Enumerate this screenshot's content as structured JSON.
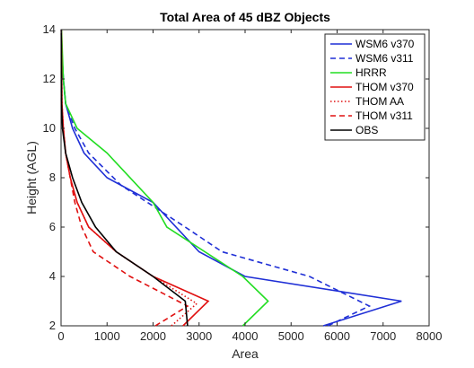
{
  "chart_data": {
    "type": "line",
    "title": "Total Area of 45 dBZ Objects",
    "xlabel": "Area",
    "ylabel": "Height (AGL)",
    "xlim": [
      0,
      8000
    ],
    "ylim": [
      2,
      14
    ],
    "xticks": [
      0,
      1000,
      2000,
      3000,
      4000,
      5000,
      6000,
      7000,
      8000
    ],
    "yticks": [
      2,
      4,
      6,
      8,
      10,
      12,
      14
    ],
    "grid": false,
    "legend_position": "top-right",
    "series": [
      {
        "name": "WSM6 v370",
        "color": "#1f2fd6",
        "dash": "solid",
        "x": [
          5700,
          7400,
          4000,
          3000,
          2000,
          1000,
          500,
          250,
          100,
          50,
          20,
          10,
          5
        ],
        "y": [
          2,
          3,
          4,
          5,
          7,
          8,
          9,
          10,
          11,
          12,
          13,
          13.5,
          14
        ]
      },
      {
        "name": "WSM6 v311",
        "color": "#1f2fd6",
        "dash": "dashed",
        "x": [
          5800,
          6700,
          5400,
          3500,
          2700,
          1300,
          600,
          300,
          100,
          50,
          20,
          5
        ],
        "y": [
          2,
          2.8,
          4,
          5,
          6,
          7.7,
          9,
          10,
          11,
          12,
          13,
          14
        ]
      },
      {
        "name": "HRRR",
        "color": "#22dd22",
        "dash": "solid",
        "x": [
          3950,
          4500,
          3950,
          2300,
          2000,
          1000,
          350,
          100,
          50,
          10
        ],
        "y": [
          2,
          3,
          4,
          6,
          7,
          9,
          10,
          11,
          12,
          14
        ]
      },
      {
        "name": "THOM v370",
        "color": "#e01010",
        "dash": "solid",
        "x": [
          2650,
          3200,
          2000,
          1200,
          600,
          350,
          200,
          100,
          50,
          20,
          5
        ],
        "y": [
          2,
          3,
          4,
          5,
          6,
          7,
          8,
          9,
          10,
          11,
          14
        ]
      },
      {
        "name": "THOM AA",
        "color": "#e01010",
        "dash": "dotted",
        "x": [
          2400,
          2950,
          2000,
          1200,
          600,
          350,
          200,
          100,
          50,
          20,
          5
        ],
        "y": [
          2,
          2.9,
          4,
          5,
          6,
          7,
          8,
          9,
          10,
          11,
          14
        ]
      },
      {
        "name": "THOM v311",
        "color": "#e01010",
        "dash": "dashed",
        "x": [
          2050,
          2750,
          1500,
          700,
          450,
          300,
          200,
          100,
          50,
          10,
          5
        ],
        "y": [
          2,
          2.8,
          4,
          5,
          6,
          7,
          8,
          9,
          10,
          11,
          14
        ]
      },
      {
        "name": "OBS",
        "color": "#000000",
        "dash": "solid",
        "x": [
          2750,
          2700,
          2000,
          1200,
          750,
          450,
          250,
          100,
          30,
          10,
          5
        ],
        "y": [
          2,
          3,
          4,
          5,
          6,
          7,
          8,
          9,
          10,
          11,
          14
        ]
      }
    ]
  }
}
